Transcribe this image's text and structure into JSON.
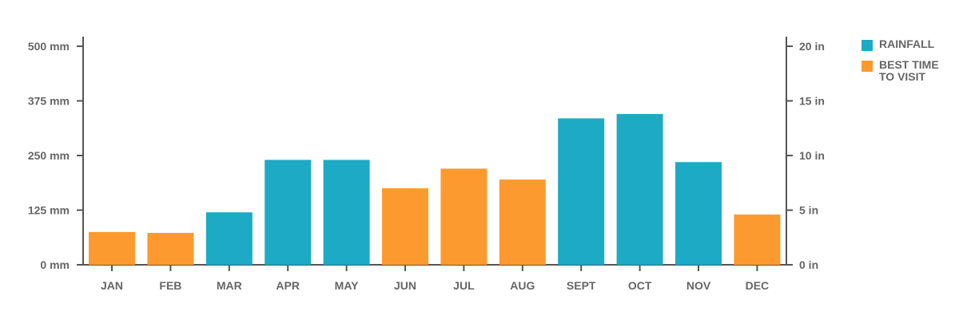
{
  "chart_data": {
    "type": "bar",
    "categories": [
      "JAN",
      "FEB",
      "MAR",
      "APR",
      "MAY",
      "JUN",
      "JUL",
      "AUG",
      "SEPT",
      "OCT",
      "NOV",
      "DEC"
    ],
    "values": [
      75,
      73,
      120,
      240,
      240,
      175,
      220,
      195,
      335,
      345,
      235,
      115
    ],
    "highlight": [
      "best",
      "best",
      "rain",
      "rain",
      "rain",
      "best",
      "best",
      "best",
      "rain",
      "rain",
      "rain",
      "best"
    ],
    "ylim": [
      0,
      500
    ],
    "y_ticks_left": [
      "0 mm",
      "125 mm",
      "250 mm",
      "375 mm",
      "500 mm"
    ],
    "y_tick_values_left": [
      0,
      125,
      250,
      375,
      500
    ],
    "y_ticks_right": [
      "0 in",
      "5 in",
      "10 in",
      "15 in",
      "20 in"
    ],
    "legend_placement": "top-right",
    "grid": false
  },
  "legend": {
    "rainfall": "RAINFALL",
    "best_time": "BEST TIME TO VISIT"
  },
  "colors": {
    "rain": "#1daac5",
    "best": "#fd9a2f",
    "axis": "#555555"
  }
}
